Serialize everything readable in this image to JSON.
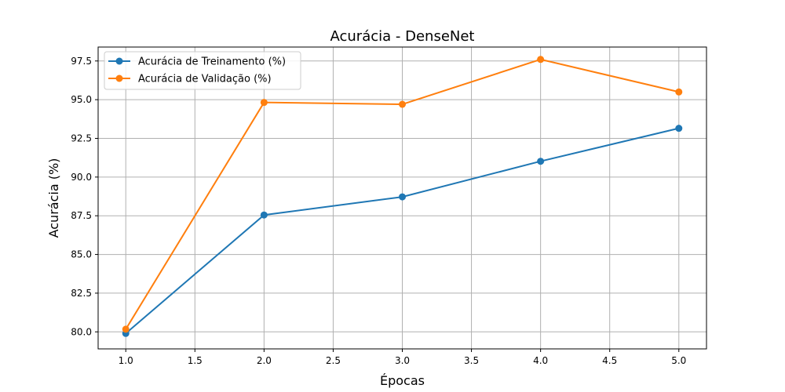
{
  "chart_data": {
    "type": "line",
    "title": "Acurácia - DenseNet",
    "xlabel": "Épocas",
    "ylabel": "Acurácia (%)",
    "xlim": [
      0.8,
      5.2
    ],
    "ylim": [
      78.9,
      98.4
    ],
    "xticks": [
      "1.0",
      "1.5",
      "2.0",
      "2.5",
      "3.0",
      "3.5",
      "4.0",
      "4.5",
      "5.0"
    ],
    "yticks": [
      "80.0",
      "82.5",
      "85.0",
      "87.5",
      "90.0",
      "92.5",
      "95.0",
      "97.5"
    ],
    "grid": true,
    "legend_position": "upper-left",
    "x": [
      1,
      2,
      3,
      4,
      5
    ],
    "series": [
      {
        "name": "Acurácia de Treinamento (%)",
        "color": "#1f77b4",
        "values": [
          79.9,
          87.55,
          88.72,
          91.02,
          93.15
        ]
      },
      {
        "name": "Acurácia de Validação (%)",
        "color": "#ff7f0e",
        "values": [
          80.17,
          94.82,
          94.7,
          97.6,
          95.5
        ]
      }
    ]
  }
}
